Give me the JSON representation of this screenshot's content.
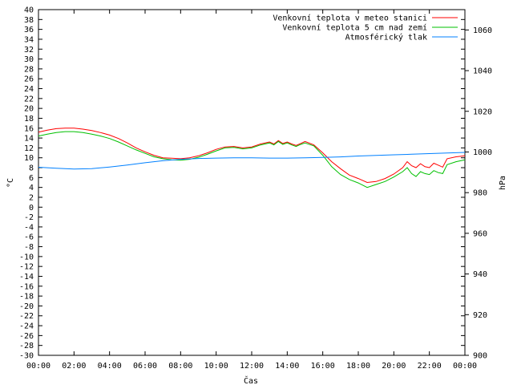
{
  "chart_data": {
    "type": "line",
    "xlabel": "Čas",
    "ylabel": "°C",
    "y2label": "hPa",
    "xlim": [
      0,
      24
    ],
    "ylim": [
      -30,
      40
    ],
    "y2lim": [
      900,
      1070
    ],
    "grid": false,
    "legend_position": "top-right",
    "x_ticks": [
      "00:00",
      "02:00",
      "04:00",
      "06:00",
      "08:00",
      "10:00",
      "12:00",
      "14:00",
      "16:00",
      "18:00",
      "20:00",
      "22:00",
      "00:00"
    ],
    "x_tick_values": [
      0,
      2,
      4,
      6,
      8,
      10,
      12,
      14,
      16,
      18,
      20,
      22,
      24
    ],
    "y_ticks": [
      40,
      38,
      36,
      34,
      32,
      30,
      28,
      26,
      24,
      22,
      20,
      18,
      16,
      14,
      12,
      10,
      8,
      6,
      4,
      2,
      0,
      -2,
      -4,
      -6,
      -8,
      -10,
      -12,
      -14,
      -16,
      -18,
      -20,
      -22,
      -24,
      -26,
      -28,
      -30
    ],
    "y2_ticks": [
      1060,
      1040,
      1020,
      1000,
      980,
      960,
      940,
      920,
      900
    ],
    "series": [
      {
        "name": "Venkovní teplota v meteo stanici",
        "color": "#ff0000",
        "axis": "y",
        "x": [
          0,
          0.5,
          1,
          1.5,
          2,
          2.5,
          3,
          3.5,
          4,
          4.5,
          5,
          5.5,
          6,
          6.5,
          7,
          7.5,
          8,
          8.5,
          9,
          9.5,
          10,
          10.5,
          11,
          11.5,
          12,
          12.5,
          13,
          13.25,
          13.5,
          13.75,
          14,
          14.25,
          14.5,
          14.75,
          15,
          15.5,
          16,
          16.5,
          17,
          17.5,
          18,
          18.5,
          19,
          19.5,
          20,
          20.5,
          20.75,
          21,
          21.25,
          21.5,
          21.75,
          22,
          22.25,
          22.5,
          22.75,
          23,
          23.5,
          24
        ],
        "y": [
          15.2,
          15.6,
          15.9,
          16.0,
          16.0,
          15.8,
          15.5,
          15.1,
          14.6,
          13.9,
          13.0,
          12.0,
          11.2,
          10.5,
          10.0,
          9.9,
          9.8,
          10.0,
          10.4,
          11.0,
          11.7,
          12.2,
          12.3,
          12.0,
          12.2,
          12.8,
          13.2,
          12.8,
          13.5,
          12.9,
          13.2,
          12.8,
          12.5,
          12.9,
          13.3,
          12.6,
          11.0,
          9.2,
          7.8,
          6.5,
          5.8,
          5.0,
          5.2,
          5.8,
          6.7,
          8.0,
          9.2,
          8.4,
          8.0,
          8.8,
          8.2,
          8.0,
          8.9,
          8.5,
          8.1,
          9.8,
          10.2,
          10.4
        ]
      },
      {
        "name": "Venkovní teplota 5 cm nad zemí",
        "color": "#00c000",
        "axis": "y",
        "x": [
          0,
          0.5,
          1,
          1.5,
          2,
          2.5,
          3,
          3.5,
          4,
          4.5,
          5,
          5.5,
          6,
          6.5,
          7,
          7.5,
          8,
          8.5,
          9,
          9.5,
          10,
          10.5,
          11,
          11.5,
          12,
          12.5,
          13,
          13.25,
          13.5,
          13.75,
          14,
          14.25,
          14.5,
          14.75,
          15,
          15.5,
          16,
          16.5,
          17,
          17.5,
          18,
          18.5,
          19,
          19.5,
          20,
          20.5,
          20.75,
          21,
          21.25,
          21.5,
          21.75,
          22,
          22.25,
          22.5,
          22.75,
          23,
          23.5,
          24
        ],
        "y": [
          14.4,
          14.8,
          15.1,
          15.3,
          15.3,
          15.1,
          14.8,
          14.4,
          13.9,
          13.2,
          12.4,
          11.6,
          10.9,
          10.2,
          9.8,
          9.6,
          9.5,
          9.7,
          10.1,
          10.7,
          11.4,
          12.0,
          12.1,
          11.8,
          12.0,
          12.6,
          13.0,
          12.6,
          13.3,
          12.7,
          13.0,
          12.6,
          12.3,
          12.7,
          13.0,
          12.4,
          10.5,
          8.2,
          6.6,
          5.6,
          4.9,
          4.0,
          4.6,
          5.2,
          6.1,
          7.2,
          8.0,
          6.8,
          6.2,
          7.2,
          6.8,
          6.6,
          7.4,
          7.0,
          6.8,
          8.6,
          9.2,
          9.6
        ]
      },
      {
        "name": "Atmosférický tlak",
        "color": "#0080ff",
        "axis": "y2",
        "x": [
          0,
          1,
          2,
          3,
          4,
          5,
          6,
          7,
          8,
          9,
          10,
          11,
          12,
          13,
          14,
          15,
          16,
          17,
          18,
          19,
          20,
          21,
          22,
          23,
          24
        ],
        "y": [
          992.5,
          992.0,
          991.6,
          991.8,
          992.6,
          993.6,
          994.7,
          995.7,
          996.4,
          996.8,
          997.0,
          997.1,
          997.1,
          997.0,
          997.0,
          997.1,
          997.3,
          997.6,
          998.0,
          998.3,
          998.6,
          998.9,
          999.2,
          999.5,
          999.8
        ]
      }
    ]
  }
}
